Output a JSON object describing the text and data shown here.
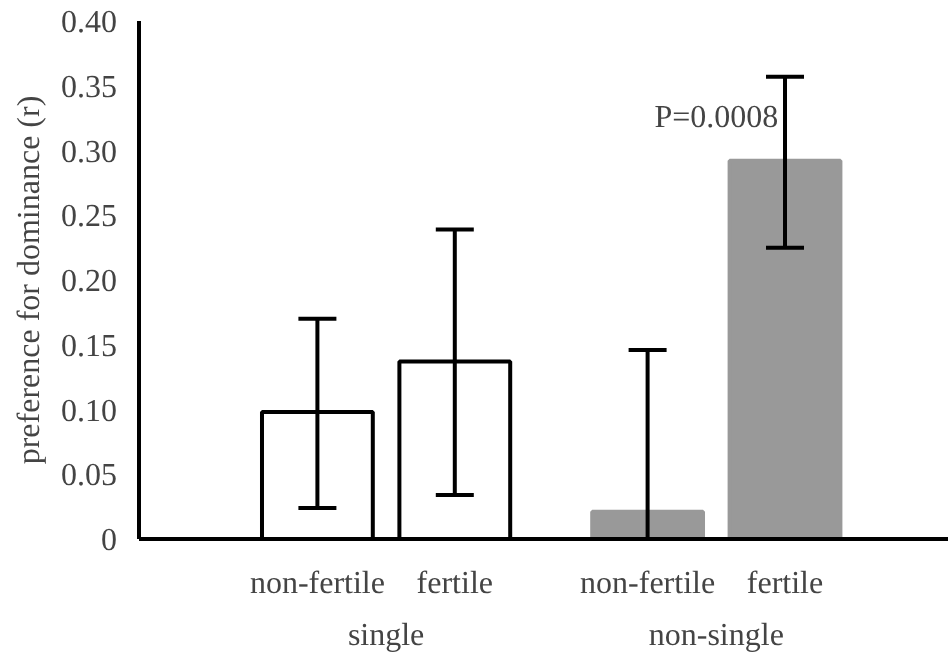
{
  "chart_data": {
    "type": "bar",
    "ylabel": "preference for dominance (r)",
    "categories": [
      "non-fertile",
      "fertile",
      "non-fertile",
      "fertile"
    ],
    "values": [
      0.098,
      0.137,
      0.021,
      0.292
    ],
    "colors": [
      "#ffffff",
      "#ffffff",
      "#999999",
      "#999999"
    ],
    "errors": [
      [
        0.024,
        0.17
      ],
      [
        0.034,
        0.239
      ],
      [
        0,
        0.146
      ],
      [
        0.225,
        0.357
      ]
    ],
    "ylim": [
      0,
      0.4
    ],
    "yticks": [
      {
        "value": 0,
        "label": "0"
      },
      {
        "value": 0.05,
        "label": "0.05"
      },
      {
        "value": 0.1,
        "label": "0.10"
      },
      {
        "value": 0.15,
        "label": "0.15"
      },
      {
        "value": 0.2,
        "label": "0.20"
      },
      {
        "value": 0.25,
        "label": "0.25"
      },
      {
        "value": 0.3,
        "label": "0.30"
      },
      {
        "value": 0.35,
        "label": "0.35"
      },
      {
        "value": 0.4,
        "label": "0.40"
      }
    ],
    "annotations": [
      "single",
      "non-single",
      "P=0.0008"
    ],
    "grid": false
  }
}
